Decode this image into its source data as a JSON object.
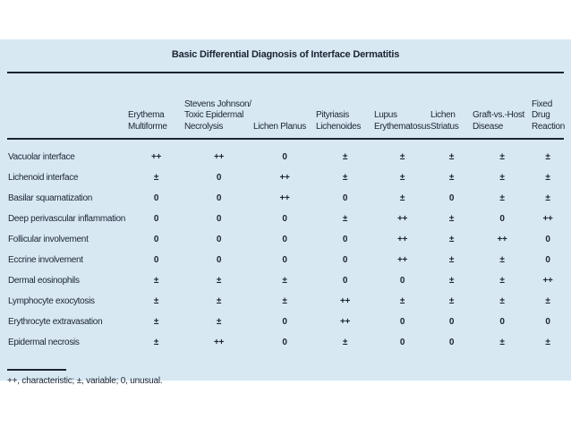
{
  "panel": {
    "bg_color": "#d8e8f3",
    "text_color": "#1b2433"
  },
  "table": {
    "title": "Basic Differential Diagnosis of Interface Dermatitis",
    "row_header_label": "",
    "columns": [
      "Erythema\nMultiforme",
      "Stevens Johnson/\nToxic Epidermal\nNecrolysis",
      "Lichen Planus",
      "Pityriasis\nLichenoides",
      "Lupus\nErythematosus",
      "Lichen\nStriatus",
      "Graft-vs.-Host\nDisease",
      "Fixed Drug\nReaction"
    ],
    "rows": [
      {
        "label": "Vacuolar interface",
        "values": [
          "++",
          "++",
          "0",
          "±",
          "±",
          "±",
          "±",
          "±"
        ]
      },
      {
        "label": "Lichenoid interface",
        "values": [
          "±",
          "0",
          "++",
          "±",
          "±",
          "±",
          "±",
          "±"
        ]
      },
      {
        "label": "Basilar squamatization",
        "values": [
          "0",
          "0",
          "++",
          "0",
          "±",
          "0",
          "±",
          "±"
        ]
      },
      {
        "label": "Deep perivascular inflammation",
        "values": [
          "0",
          "0",
          "0",
          "±",
          "++",
          "±",
          "0",
          "++"
        ]
      },
      {
        "label": "Follicular involvement",
        "values": [
          "0",
          "0",
          "0",
          "0",
          "++",
          "±",
          "++",
          "0"
        ]
      },
      {
        "label": "Eccrine involvement",
        "values": [
          "0",
          "0",
          "0",
          "0",
          "++",
          "±",
          "±",
          "0"
        ]
      },
      {
        "label": "Dermal eosinophils",
        "values": [
          "±",
          "±",
          "±",
          "0",
          "0",
          "±",
          "±",
          "++"
        ]
      },
      {
        "label": "Lymphocyte exocytosis",
        "values": [
          "±",
          "±",
          "±",
          "++",
          "±",
          "±",
          "±",
          "±"
        ]
      },
      {
        "label": "Erythrocyte extravasation",
        "values": [
          "±",
          "±",
          "0",
          "++",
          "0",
          "0",
          "0",
          "0"
        ]
      },
      {
        "label": "Epidermal necrosis",
        "values": [
          "±",
          "++",
          "0",
          "±",
          "0",
          "0",
          "±",
          "±"
        ]
      }
    ],
    "footnote": "++, characteristic; ±, variable; 0, unusual.",
    "legend": {
      "characteristic_symbol": "++",
      "variable_symbol": "±",
      "unusual_symbol": "0"
    }
  }
}
